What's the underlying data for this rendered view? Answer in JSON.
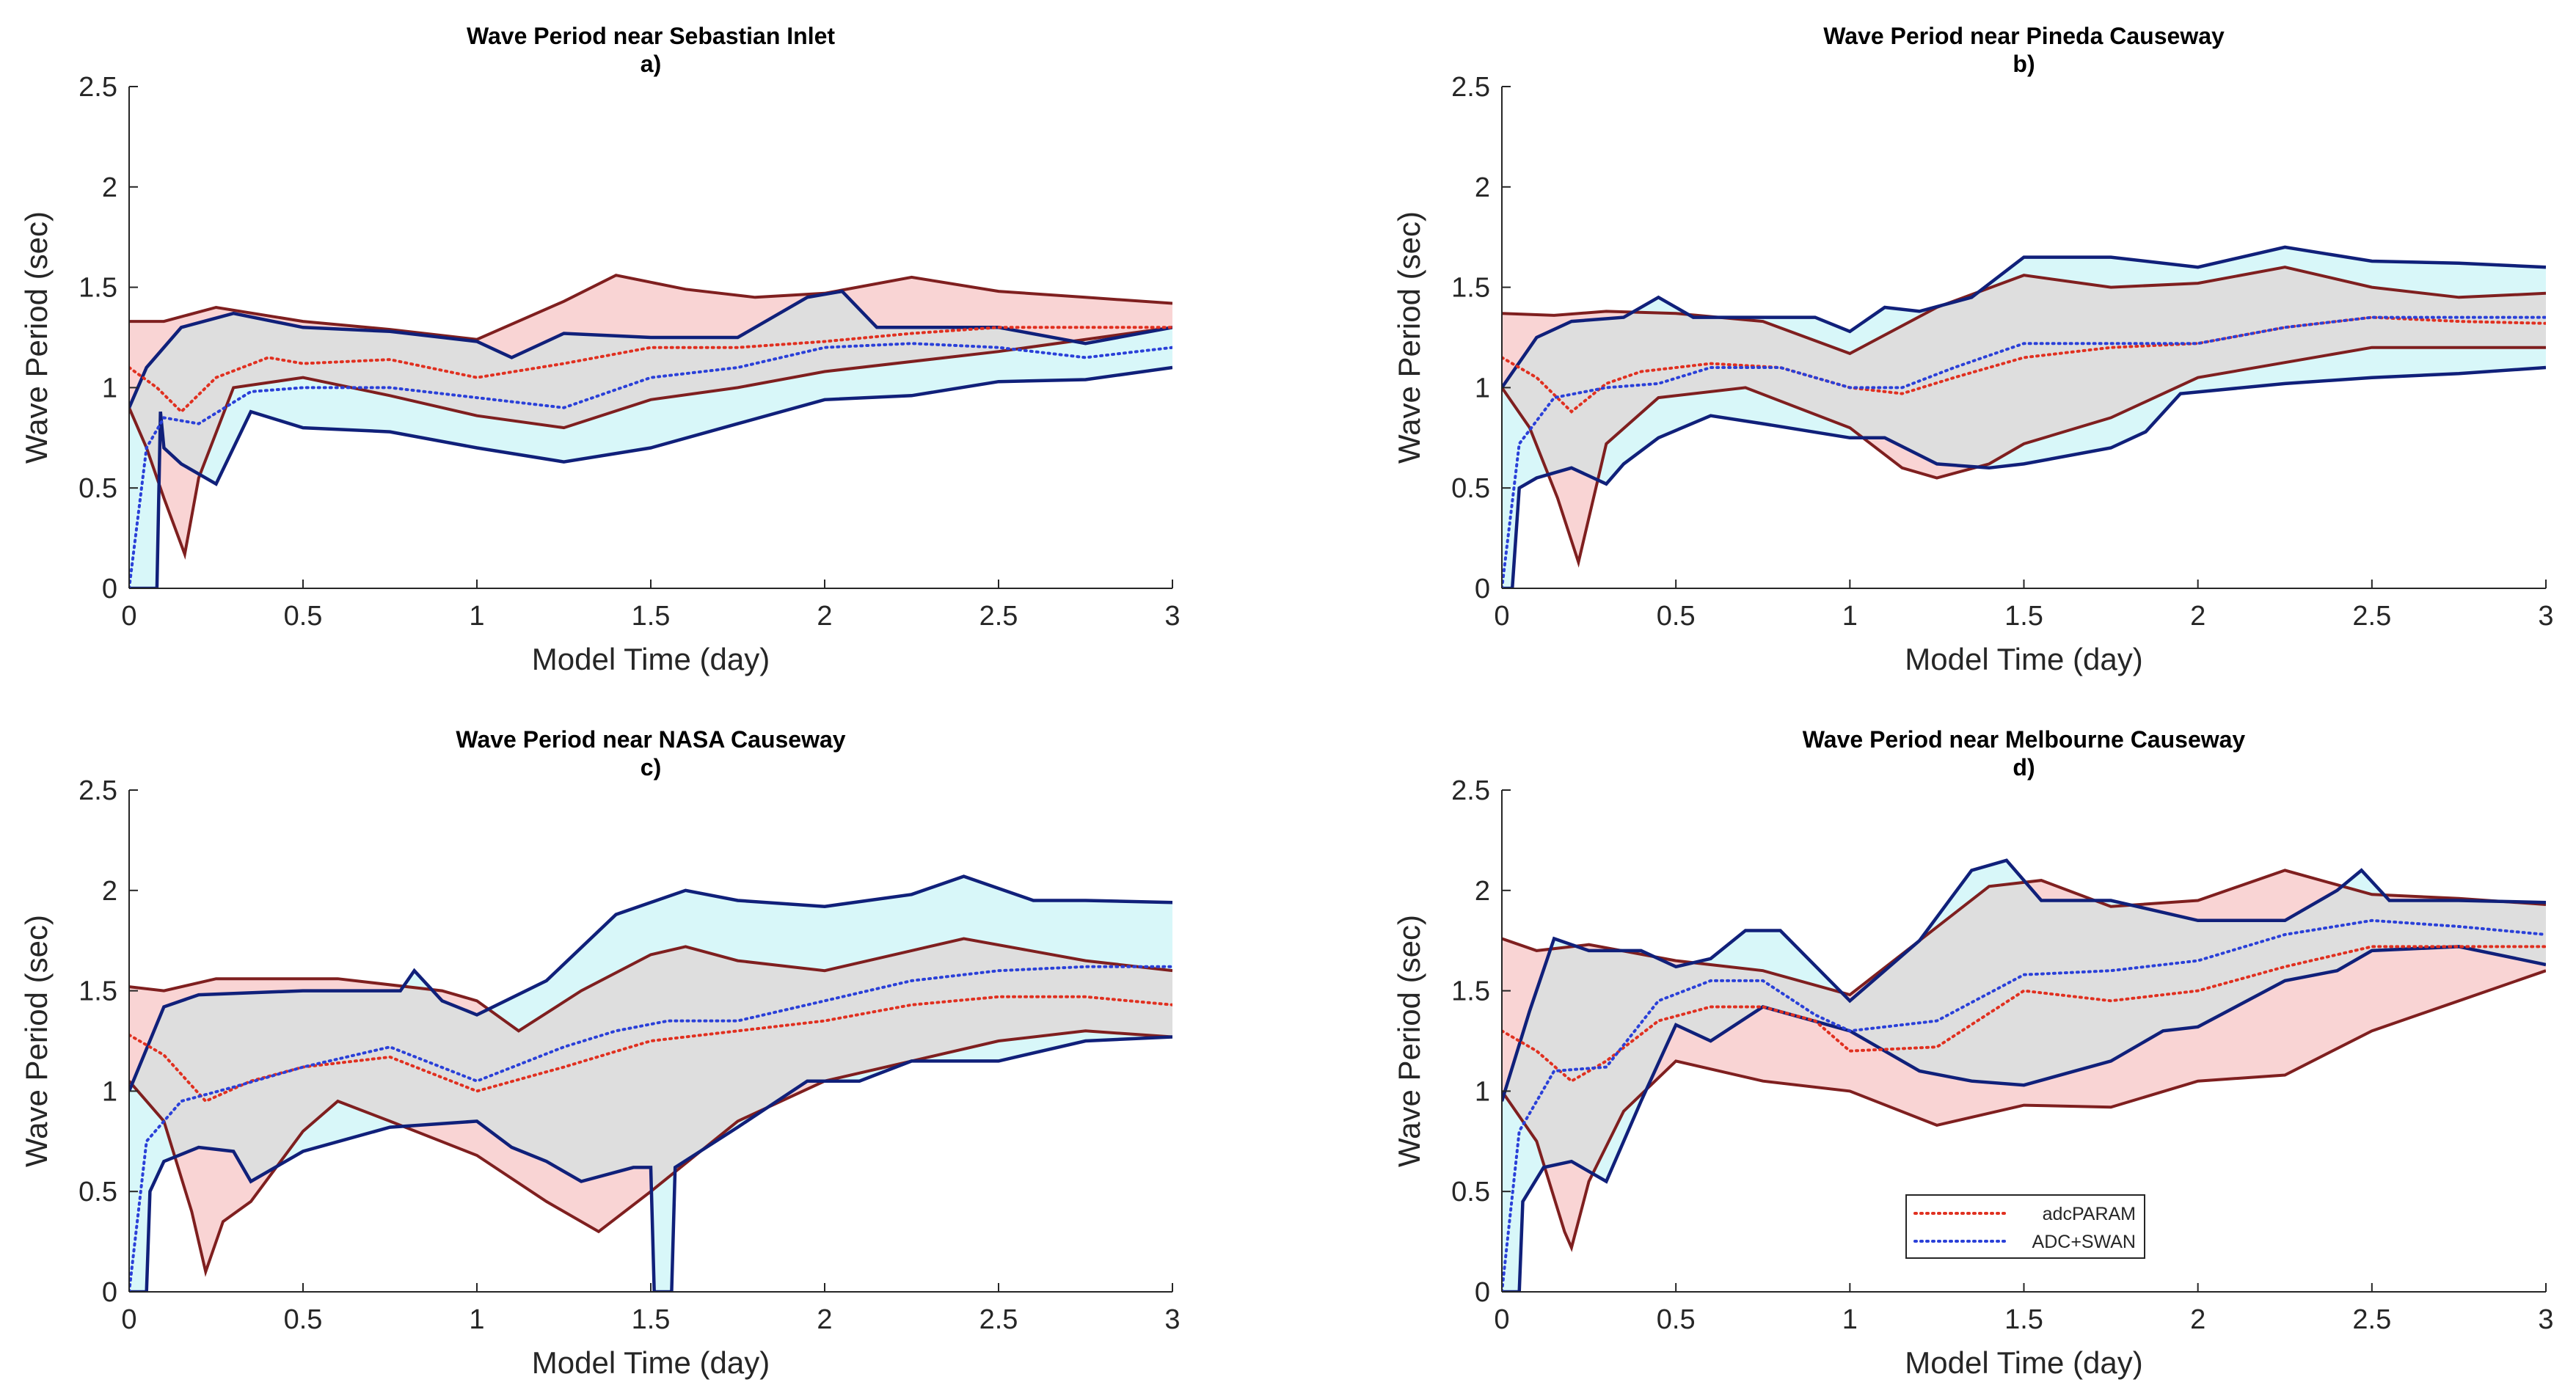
{
  "colors": {
    "band_param_fill": "#f9d4d4",
    "band_param_line": "#7f1f1f",
    "band_swan_fill": "#d8f7f9",
    "band_swan_line": "#10207a",
    "overlap_fill": "#dedede",
    "param_mean_line": "#e03020",
    "swan_mean_line": "#2a40d8"
  },
  "chart_data": [
    {
      "type": "area",
      "title": "Wave Period near Sebastian Inlet",
      "panel_label": "a)",
      "xlabel": "Model Time (day)",
      "ylabel": "Wave Period (sec)",
      "xlim": [
        0,
        3
      ],
      "ylim": [
        0,
        2.5
      ],
      "xticks": [
        "0",
        "0.5",
        "1",
        "1.5",
        "2",
        "2.5",
        "3"
      ],
      "yticks": [
        "0",
        "0.5",
        "1",
        "1.5",
        "2",
        "2.5"
      ],
      "series": [
        {
          "name": "adcPARAM upper",
          "x": [
            0,
            0.1,
            0.25,
            0.5,
            0.75,
            1.0,
            1.25,
            1.4,
            1.6,
            1.8,
            2.0,
            2.25,
            2.5,
            2.75,
            3.0
          ],
          "y": [
            1.33,
            1.33,
            1.4,
            1.33,
            1.29,
            1.24,
            1.43,
            1.56,
            1.49,
            1.45,
            1.47,
            1.55,
            1.48,
            1.45,
            1.42
          ]
        },
        {
          "name": "adcPARAM lower",
          "x": [
            0,
            0.05,
            0.1,
            0.16,
            0.2,
            0.3,
            0.5,
            0.75,
            1.0,
            1.25,
            1.5,
            1.75,
            2.0,
            2.5,
            3.0
          ],
          "y": [
            0.9,
            0.7,
            0.45,
            0.17,
            0.55,
            1.0,
            1.05,
            0.96,
            0.86,
            0.8,
            0.94,
            1.0,
            1.08,
            1.18,
            1.3
          ]
        },
        {
          "name": "ADC+SWAN upper",
          "x": [
            0,
            0.05,
            0.15,
            0.3,
            0.5,
            0.75,
            1.0,
            1.1,
            1.25,
            1.5,
            1.75,
            1.95,
            2.05,
            2.15,
            2.5,
            2.75,
            3.0
          ],
          "y": [
            0.9,
            1.1,
            1.3,
            1.37,
            1.3,
            1.28,
            1.23,
            1.15,
            1.27,
            1.25,
            1.25,
            1.45,
            1.48,
            1.3,
            1.3,
            1.22,
            1.3
          ]
        },
        {
          "name": "ADC+SWAN lower",
          "x": [
            0,
            0.08,
            0.09,
            0.1,
            0.15,
            0.25,
            0.35,
            0.5,
            0.75,
            1.0,
            1.25,
            1.5,
            1.75,
            2.0,
            2.25,
            2.5,
            2.75,
            3.0
          ],
          "y": [
            0,
            0,
            0.88,
            0.7,
            0.62,
            0.52,
            0.88,
            0.8,
            0.78,
            0.7,
            0.63,
            0.7,
            0.82,
            0.94,
            0.96,
            1.03,
            1.04,
            1.1
          ]
        },
        {
          "name": "adcPARAM",
          "x": [
            0,
            0.08,
            0.15,
            0.25,
            0.4,
            0.5,
            0.75,
            1.0,
            1.25,
            1.5,
            1.75,
            2.0,
            2.25,
            2.5,
            2.75,
            3.0
          ],
          "y": [
            1.1,
            1.0,
            0.88,
            1.05,
            1.15,
            1.12,
            1.14,
            1.05,
            1.12,
            1.2,
            1.2,
            1.23,
            1.27,
            1.3,
            1.3,
            1.3
          ]
        },
        {
          "name": "ADC+SWAN",
          "x": [
            0,
            0.05,
            0.1,
            0.2,
            0.35,
            0.5,
            0.75,
            1.0,
            1.25,
            1.5,
            1.75,
            2.0,
            2.25,
            2.5,
            2.75,
            3.0
          ],
          "y": [
            0.0,
            0.7,
            0.85,
            0.82,
            0.98,
            1.0,
            1.0,
            0.95,
            0.9,
            1.05,
            1.1,
            1.2,
            1.22,
            1.2,
            1.15,
            1.2
          ]
        }
      ]
    },
    {
      "type": "area",
      "title": "Wave Period near Pineda Causeway",
      "panel_label": "b)",
      "xlabel": "Model Time (day)",
      "ylabel": "Wave Period (sec)",
      "xlim": [
        0,
        3
      ],
      "ylim": [
        0,
        2.5
      ],
      "xticks": [
        "0",
        "0.5",
        "1",
        "1.5",
        "2",
        "2.5",
        "3"
      ],
      "yticks": [
        "0",
        "0.5",
        "1",
        "1.5",
        "2",
        "2.5"
      ],
      "series": [
        {
          "name": "adcPARAM upper",
          "x": [
            0,
            0.15,
            0.3,
            0.5,
            0.75,
            1.0,
            1.25,
            1.5,
            1.75,
            2.0,
            2.25,
            2.5,
            2.75,
            3.0
          ],
          "y": [
            1.37,
            1.36,
            1.38,
            1.37,
            1.33,
            1.17,
            1.4,
            1.56,
            1.5,
            1.52,
            1.6,
            1.5,
            1.45,
            1.47
          ]
        },
        {
          "name": "adcPARAM lower",
          "x": [
            0,
            0.08,
            0.16,
            0.22,
            0.3,
            0.45,
            0.7,
            1.0,
            1.15,
            1.25,
            1.4,
            1.5,
            1.75,
            2.0,
            2.5,
            3.0
          ],
          "y": [
            1.0,
            0.8,
            0.45,
            0.13,
            0.72,
            0.95,
            1.0,
            0.8,
            0.6,
            0.55,
            0.62,
            0.72,
            0.85,
            1.05,
            1.2,
            1.2
          ]
        },
        {
          "name": "ADC+SWAN upper",
          "x": [
            0,
            0.1,
            0.2,
            0.35,
            0.45,
            0.55,
            0.75,
            0.9,
            1.0,
            1.1,
            1.2,
            1.35,
            1.5,
            1.75,
            2.0,
            2.25,
            2.5,
            2.75,
            3.0
          ],
          "y": [
            1.0,
            1.25,
            1.33,
            1.35,
            1.45,
            1.35,
            1.35,
            1.35,
            1.28,
            1.4,
            1.38,
            1.45,
            1.65,
            1.65,
            1.6,
            1.7,
            1.63,
            1.62,
            1.6
          ]
        },
        {
          "name": "ADC+SWAN lower",
          "x": [
            0,
            0.03,
            0.05,
            0.1,
            0.2,
            0.3,
            0.35,
            0.45,
            0.6,
            0.75,
            1.0,
            1.1,
            1.25,
            1.4,
            1.5,
            1.75,
            1.85,
            1.95,
            2.25,
            2.5,
            2.75,
            3.0
          ],
          "y": [
            0,
            0,
            0.5,
            0.55,
            0.6,
            0.52,
            0.62,
            0.75,
            0.86,
            0.82,
            0.75,
            0.75,
            0.62,
            0.6,
            0.62,
            0.7,
            0.78,
            0.97,
            1.02,
            1.05,
            1.07,
            1.1
          ]
        },
        {
          "name": "adcPARAM",
          "x": [
            0,
            0.1,
            0.2,
            0.3,
            0.4,
            0.6,
            0.8,
            1.0,
            1.15,
            1.3,
            1.5,
            1.75,
            2.0,
            2.25,
            2.5,
            2.75,
            3.0
          ],
          "y": [
            1.15,
            1.05,
            0.88,
            1.02,
            1.08,
            1.12,
            1.1,
            1.0,
            0.97,
            1.05,
            1.15,
            1.2,
            1.22,
            1.3,
            1.35,
            1.33,
            1.32
          ]
        },
        {
          "name": "ADC+SWAN",
          "x": [
            0,
            0.05,
            0.15,
            0.3,
            0.45,
            0.6,
            0.8,
            1.0,
            1.15,
            1.3,
            1.5,
            1.75,
            2.0,
            2.25,
            2.5,
            2.75,
            3.0
          ],
          "y": [
            0.0,
            0.72,
            0.95,
            1.0,
            1.02,
            1.1,
            1.1,
            1.0,
            1.0,
            1.1,
            1.22,
            1.22,
            1.22,
            1.3,
            1.35,
            1.35,
            1.35
          ]
        }
      ]
    },
    {
      "type": "area",
      "title": "Wave Period near NASA Causeway",
      "panel_label": "c)",
      "xlabel": "Model Time (day)",
      "ylabel": "Wave Period (sec)",
      "xlim": [
        0,
        3
      ],
      "ylim": [
        0,
        2.5
      ],
      "xticks": [
        "0",
        "0.5",
        "1",
        "1.5",
        "2",
        "2.5",
        "3"
      ],
      "yticks": [
        "0",
        "0.5",
        "1",
        "1.5",
        "2",
        "2.5"
      ],
      "series": [
        {
          "name": "adcPARAM upper",
          "x": [
            0,
            0.1,
            0.25,
            0.6,
            0.9,
            1.0,
            1.12,
            1.3,
            1.5,
            1.6,
            1.75,
            2.0,
            2.25,
            2.4,
            2.75,
            3.0
          ],
          "y": [
            1.52,
            1.5,
            1.56,
            1.56,
            1.5,
            1.45,
            1.3,
            1.5,
            1.68,
            1.72,
            1.65,
            1.6,
            1.7,
            1.76,
            1.65,
            1.6
          ]
        },
        {
          "name": "adcPARAM lower",
          "x": [
            0,
            0.1,
            0.18,
            0.22,
            0.27,
            0.35,
            0.5,
            0.6,
            0.75,
            1.0,
            1.2,
            1.35,
            1.5,
            1.75,
            2.0,
            2.25,
            2.5,
            2.75,
            3.0
          ],
          "y": [
            1.05,
            0.85,
            0.4,
            0.1,
            0.35,
            0.45,
            0.8,
            0.95,
            0.85,
            0.68,
            0.45,
            0.3,
            0.5,
            0.85,
            1.05,
            1.15,
            1.25,
            1.3,
            1.27
          ]
        },
        {
          "name": "ADC+SWAN upper",
          "x": [
            0,
            0.1,
            0.2,
            0.5,
            0.78,
            0.82,
            0.9,
            1.0,
            1.2,
            1.4,
            1.6,
            1.75,
            2.0,
            2.25,
            2.4,
            2.6,
            2.75,
            3.0
          ],
          "y": [
            1.0,
            1.42,
            1.48,
            1.5,
            1.5,
            1.6,
            1.45,
            1.38,
            1.55,
            1.88,
            2.0,
            1.95,
            1.92,
            1.98,
            2.07,
            1.95,
            1.95,
            1.94
          ]
        },
        {
          "name": "ADC+SWAN lower",
          "x": [
            0,
            0.05,
            0.06,
            0.1,
            0.2,
            0.3,
            0.35,
            0.5,
            0.75,
            1.0,
            1.1,
            1.2,
            1.3,
            1.45,
            1.5,
            1.51,
            1.56,
            1.57,
            1.75,
            1.95,
            2.1,
            2.25,
            2.5,
            2.75,
            3.0
          ],
          "y": [
            0,
            0,
            0.5,
            0.65,
            0.72,
            0.7,
            0.55,
            0.7,
            0.82,
            0.85,
            0.72,
            0.65,
            0.55,
            0.62,
            0.62,
            0,
            0,
            0.62,
            0.82,
            1.05,
            1.05,
            1.15,
            1.15,
            1.25,
            1.27
          ]
        },
        {
          "name": "adcPARAM",
          "x": [
            0,
            0.1,
            0.22,
            0.35,
            0.5,
            0.75,
            1.0,
            1.25,
            1.5,
            1.75,
            2.0,
            2.25,
            2.5,
            2.75,
            3.0
          ],
          "y": [
            1.28,
            1.18,
            0.95,
            1.05,
            1.12,
            1.17,
            1.0,
            1.12,
            1.25,
            1.3,
            1.35,
            1.43,
            1.47,
            1.47,
            1.43
          ]
        },
        {
          "name": "ADC+SWAN",
          "x": [
            0,
            0.05,
            0.15,
            0.3,
            0.5,
            0.75,
            1.0,
            1.25,
            1.4,
            1.55,
            1.75,
            2.0,
            2.25,
            2.5,
            2.75,
            3.0
          ],
          "y": [
            0.0,
            0.75,
            0.95,
            1.02,
            1.12,
            1.22,
            1.05,
            1.22,
            1.3,
            1.35,
            1.35,
            1.45,
            1.55,
            1.6,
            1.62,
            1.62
          ]
        }
      ]
    },
    {
      "type": "area",
      "title": "Wave Period near Melbourne Causeway",
      "panel_label": "d)",
      "xlabel": "Model Time (day)",
      "ylabel": "Wave Period (sec)",
      "xlim": [
        0,
        3
      ],
      "ylim": [
        0,
        2.5
      ],
      "xticks": [
        "0",
        "0.5",
        "1",
        "1.5",
        "2",
        "2.5",
        "3"
      ],
      "yticks": [
        "0",
        "0.5",
        "1",
        "1.5",
        "2",
        "2.5"
      ],
      "legend": {
        "location": "lower-center",
        "entries": [
          "adcPARAM",
          "ADC+SWAN"
        ]
      },
      "series": [
        {
          "name": "adcPARAM upper",
          "x": [
            0,
            0.1,
            0.25,
            0.5,
            0.75,
            1.0,
            1.2,
            1.4,
            1.55,
            1.75,
            2.0,
            2.25,
            2.5,
            2.75,
            3.0
          ],
          "y": [
            1.76,
            1.7,
            1.73,
            1.65,
            1.6,
            1.48,
            1.75,
            2.02,
            2.05,
            1.92,
            1.95,
            2.1,
            1.98,
            1.96,
            1.93
          ]
        },
        {
          "name": "adcPARAM lower",
          "x": [
            0,
            0.1,
            0.18,
            0.2,
            0.25,
            0.35,
            0.5,
            0.75,
            1.0,
            1.25,
            1.5,
            1.75,
            2.0,
            2.25,
            2.5,
            2.75,
            3.0
          ],
          "y": [
            1.0,
            0.75,
            0.3,
            0.22,
            0.55,
            0.9,
            1.15,
            1.05,
            1.0,
            0.83,
            0.93,
            0.92,
            1.05,
            1.08,
            1.3,
            1.45,
            1.6
          ]
        },
        {
          "name": "ADC+SWAN upper",
          "x": [
            0,
            0.08,
            0.15,
            0.25,
            0.4,
            0.5,
            0.6,
            0.7,
            0.8,
            1.0,
            1.2,
            1.35,
            1.45,
            1.55,
            1.75,
            2.0,
            2.25,
            2.4,
            2.47,
            2.55,
            2.75,
            3.0
          ],
          "y": [
            0.95,
            1.4,
            1.76,
            1.7,
            1.7,
            1.62,
            1.66,
            1.8,
            1.8,
            1.45,
            1.75,
            2.1,
            2.15,
            1.95,
            1.95,
            1.85,
            1.85,
            2.0,
            2.1,
            1.95,
            1.95,
            1.94
          ]
        },
        {
          "name": "ADC+SWAN lower",
          "x": [
            0,
            0.05,
            0.06,
            0.12,
            0.2,
            0.3,
            0.4,
            0.5,
            0.6,
            0.75,
            1.0,
            1.2,
            1.35,
            1.5,
            1.75,
            1.9,
            2.0,
            2.25,
            2.4,
            2.5,
            2.75,
            3.0
          ],
          "y": [
            0,
            0,
            0.45,
            0.62,
            0.65,
            0.55,
            0.95,
            1.33,
            1.25,
            1.42,
            1.3,
            1.1,
            1.05,
            1.03,
            1.15,
            1.3,
            1.32,
            1.55,
            1.6,
            1.7,
            1.72,
            1.63
          ]
        },
        {
          "name": "adcPARAM",
          "x": [
            0,
            0.1,
            0.2,
            0.3,
            0.45,
            0.6,
            0.75,
            0.9,
            1.0,
            1.25,
            1.5,
            1.75,
            2.0,
            2.25,
            2.5,
            2.75,
            3.0
          ],
          "y": [
            1.3,
            1.2,
            1.05,
            1.15,
            1.35,
            1.42,
            1.42,
            1.35,
            1.2,
            1.22,
            1.5,
            1.45,
            1.5,
            1.62,
            1.72,
            1.72,
            1.72
          ]
        },
        {
          "name": "ADC+SWAN",
          "x": [
            0,
            0.05,
            0.15,
            0.3,
            0.45,
            0.6,
            0.75,
            0.9,
            1.0,
            1.25,
            1.5,
            1.75,
            2.0,
            2.25,
            2.5,
            2.75,
            3.0
          ],
          "y": [
            0.0,
            0.8,
            1.1,
            1.12,
            1.45,
            1.55,
            1.55,
            1.38,
            1.3,
            1.35,
            1.58,
            1.6,
            1.65,
            1.78,
            1.85,
            1.82,
            1.78
          ]
        }
      ]
    }
  ]
}
